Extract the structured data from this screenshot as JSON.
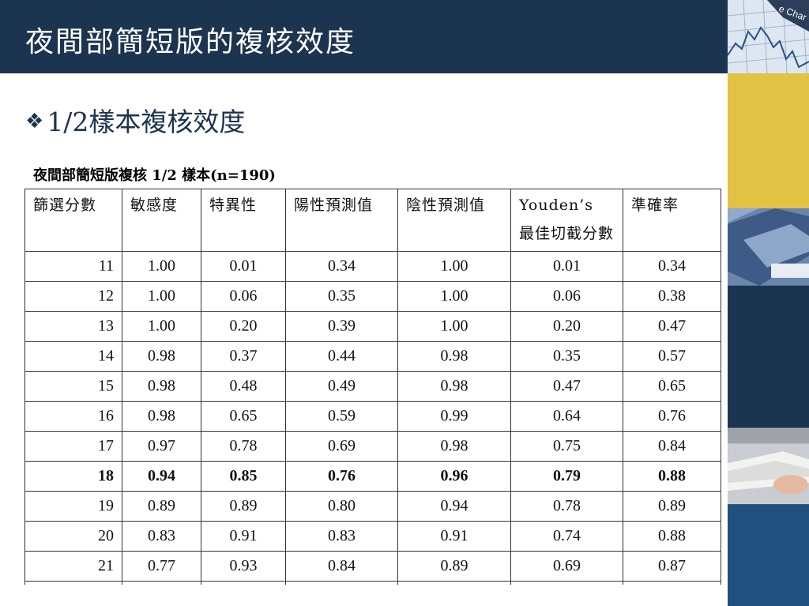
{
  "slide": {
    "title": "夜間部簡短版的複核效度",
    "bullet": "1/2樣本複核效度",
    "colors": {
      "title_bg": "#1b344f",
      "accent_yellow": "#e2c244",
      "accent_blue": "#20517e"
    }
  },
  "table": {
    "caption": "夜間部簡短版複核 1/2 樣本(n=190)",
    "headers": [
      "篩選分數",
      "敏感度",
      "特異性",
      "陽性預測值",
      "陰性預測值",
      "Youden’s 最佳切截分數",
      "準確率"
    ],
    "rows": [
      [
        "11",
        "1.00",
        "0.01",
        "0.34",
        "1.00",
        "0.01",
        "0.34"
      ],
      [
        "12",
        "1.00",
        "0.06",
        "0.35",
        "1.00",
        "0.06",
        "0.38"
      ],
      [
        "13",
        "1.00",
        "0.20",
        "0.39",
        "1.00",
        "0.20",
        "0.47"
      ],
      [
        "14",
        "0.98",
        "0.37",
        "0.44",
        "0.98",
        "0.35",
        "0.57"
      ],
      [
        "15",
        "0.98",
        "0.48",
        "0.49",
        "0.98",
        "0.47",
        "0.65"
      ],
      [
        "16",
        "0.98",
        "0.65",
        "0.59",
        "0.99",
        "0.64",
        "0.76"
      ],
      [
        "17",
        "0.97",
        "0.78",
        "0.69",
        "0.98",
        "0.75",
        "0.84"
      ],
      [
        "18",
        "0.94",
        "0.85",
        "0.76",
        "0.96",
        "0.79",
        "0.88"
      ],
      [
        "19",
        "0.89",
        "0.89",
        "0.80",
        "0.94",
        "0.78",
        "0.89"
      ],
      [
        "20",
        "0.83",
        "0.91",
        "0.83",
        "0.91",
        "0.74",
        "0.88"
      ],
      [
        "21",
        "0.77",
        "0.93",
        "0.84",
        "0.89",
        "0.69",
        "0.87"
      ]
    ],
    "highlighted_row": "18"
  }
}
